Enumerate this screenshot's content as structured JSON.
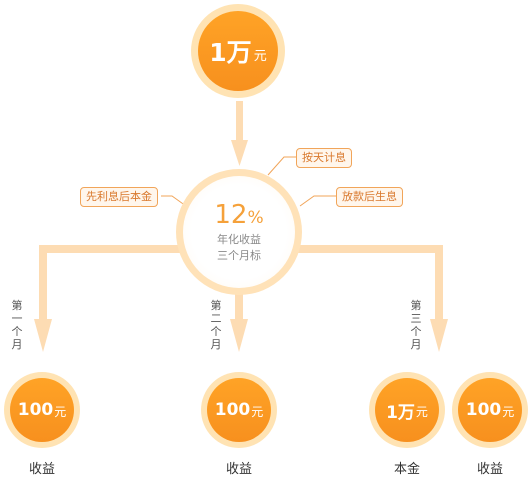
{
  "top_coin": {
    "amount": "1万",
    "unit": "元"
  },
  "hub": {
    "rate": "12",
    "rate_unit": "%",
    "line1": "年化收益",
    "line2": "三个月标"
  },
  "tags": {
    "daily_interest": "按天计息",
    "interest_first": "先利息后本金",
    "release": "放款后生息"
  },
  "periods": [
    [
      "第",
      "一",
      "个",
      "月"
    ],
    [
      "第",
      "二",
      "个",
      "月"
    ],
    [
      "第",
      "三",
      "个",
      "月"
    ]
  ],
  "bottom_coins": [
    {
      "amount": "100",
      "unit": "元",
      "label": "收益"
    },
    {
      "amount": "100",
      "unit": "元",
      "label": "收益"
    },
    {
      "amount": "1万",
      "unit": "元",
      "label": "本金"
    },
    {
      "amount": "100",
      "unit": "元",
      "label": "收益"
    }
  ],
  "colors": {
    "coin": "#f7901e",
    "coin_ring": "#ffe3b3",
    "connector": "#fddcb3",
    "tag_border": "#f1a55a",
    "rate": "#f5a13a"
  }
}
